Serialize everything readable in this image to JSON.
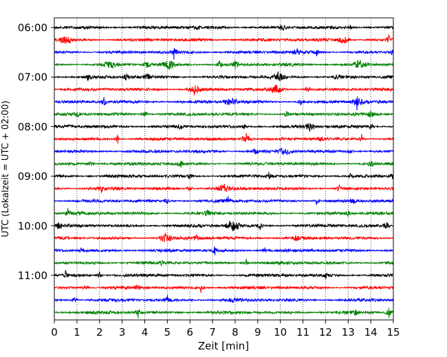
{
  "chart_data": {
    "type": "line",
    "title": "",
    "xlabel": "Zeit  [min]",
    "ylabel": "UTC (Lokalzeit = UTC + 02:00)",
    "xlim": [
      0,
      15
    ],
    "x_ticks": [
      "0",
      "1",
      "2",
      "3",
      "4",
      "5",
      "6",
      "7",
      "8",
      "9",
      "10",
      "11",
      "12",
      "13",
      "14",
      "15"
    ],
    "y_ticks": [
      {
        "label": "06:00",
        "trace_index": 0
      },
      {
        "label": "07:00",
        "trace_index": 4
      },
      {
        "label": "08:00",
        "trace_index": 8
      },
      {
        "label": "09:00",
        "trace_index": 12
      },
      {
        "label": "10:00",
        "trace_index": 16
      },
      {
        "label": "11:00",
        "trace_index": 20
      }
    ],
    "grid": "vertical-dotted",
    "colors": [
      "#000000",
      "#ff0000",
      "#0000ff",
      "#008000"
    ],
    "series": [
      {
        "start": "06:00",
        "color": "#000000",
        "events": [
          [
            6.3,
            0.4
          ],
          [
            10.1,
            0.7
          ],
          [
            13.1,
            0.4
          ]
        ]
      },
      {
        "start": "06:15",
        "color": "#ff0000",
        "events": [
          [
            0.5,
            0.9
          ],
          [
            12.8,
            0.9
          ],
          [
            14.8,
            0.6
          ]
        ]
      },
      {
        "start": "06:30",
        "color": "#0000ff",
        "events": [
          [
            5.3,
            0.7
          ],
          [
            10.7,
            0.7
          ],
          [
            11.6,
            0.5
          ],
          [
            15.0,
            0.6
          ]
        ]
      },
      {
        "start": "06:45",
        "color": "#008000",
        "events": [
          [
            2.5,
            0.9
          ],
          [
            4.1,
            0.6
          ],
          [
            5.1,
            0.9
          ],
          [
            7.3,
            0.6
          ],
          [
            8.0,
            0.6
          ],
          [
            13.5,
            1.0
          ]
        ]
      },
      {
        "start": "07:00",
        "color": "#000000",
        "events": [
          [
            1.5,
            0.5
          ],
          [
            3.2,
            0.6
          ],
          [
            4.1,
            0.6
          ],
          [
            9.9,
            0.9
          ],
          [
            12.5,
            0.6
          ]
        ]
      },
      {
        "start": "07:15",
        "color": "#ff0000",
        "events": [
          [
            6.2,
            0.9
          ],
          [
            9.8,
            0.9
          ],
          [
            11.2,
            0.6
          ]
        ]
      },
      {
        "start": "07:30",
        "color": "#0000ff",
        "events": [
          [
            2.2,
            0.7
          ],
          [
            7.8,
            0.9
          ],
          [
            10.9,
            0.6
          ],
          [
            13.4,
            0.8
          ]
        ]
      },
      {
        "start": "07:45",
        "color": "#008000",
        "events": [
          [
            1.0,
            0.5
          ],
          [
            4.0,
            0.7
          ],
          [
            10.3,
            0.7
          ],
          [
            14.0,
            0.6
          ]
        ]
      },
      {
        "start": "08:00",
        "color": "#000000",
        "events": [
          [
            0.7,
            0.4
          ],
          [
            5.6,
            0.5
          ],
          [
            8.4,
            0.5
          ],
          [
            11.3,
            0.8
          ],
          [
            14.0,
            0.6
          ]
        ]
      },
      {
        "start": "08:15",
        "color": "#ff0000",
        "events": [
          [
            2.8,
            0.5
          ],
          [
            8.5,
            0.8
          ],
          [
            11.8,
            0.5
          ],
          [
            13.6,
            0.5
          ]
        ]
      },
      {
        "start": "08:30",
        "color": "#0000ff",
        "events": [
          [
            8.9,
            0.6
          ],
          [
            10.2,
            0.8
          ],
          [
            13.1,
            0.5
          ]
        ]
      },
      {
        "start": "08:45",
        "color": "#008000",
        "events": [
          [
            1.6,
            0.5
          ],
          [
            5.6,
            0.6
          ],
          [
            14.0,
            0.6
          ]
        ]
      },
      {
        "start": "09:00",
        "color": "#000000",
        "events": [
          [
            6.0,
            0.5
          ],
          [
            9.5,
            0.5
          ],
          [
            13.1,
            0.5
          ],
          [
            15.0,
            0.6
          ]
        ]
      },
      {
        "start": "09:15",
        "color": "#ff0000",
        "events": [
          [
            2.1,
            0.5
          ],
          [
            6.0,
            0.5
          ],
          [
            7.5,
            0.8
          ],
          [
            12.6,
            0.5
          ]
        ]
      },
      {
        "start": "09:30",
        "color": "#0000ff",
        "events": [
          [
            5.0,
            0.5
          ],
          [
            7.7,
            0.5
          ],
          [
            11.6,
            0.5
          ],
          [
            13.2,
            0.5
          ]
        ]
      },
      {
        "start": "09:45",
        "color": "#008000",
        "events": [
          [
            0.6,
            0.6
          ],
          [
            6.8,
            0.5
          ],
          [
            13.0,
            0.4
          ]
        ]
      },
      {
        "start": "10:00",
        "color": "#000000",
        "events": [
          [
            0.2,
            0.6
          ],
          [
            7.9,
            1.5
          ],
          [
            9.1,
            0.5
          ],
          [
            14.7,
            0.6
          ]
        ]
      },
      {
        "start": "10:15",
        "color": "#ff0000",
        "events": [
          [
            4.9,
            0.8
          ],
          [
            6.3,
            0.6
          ],
          [
            10.7,
            0.5
          ]
        ]
      },
      {
        "start": "10:30",
        "color": "#0000ff",
        "events": [
          [
            1.2,
            0.6
          ],
          [
            7.1,
            0.6
          ],
          [
            9.3,
            0.4
          ]
        ]
      },
      {
        "start": "10:45",
        "color": "#008000",
        "events": [
          [
            4.8,
            0.5
          ],
          [
            8.5,
            0.4
          ]
        ]
      },
      {
        "start": "11:00",
        "color": "#000000",
        "events": [
          [
            0.5,
            0.6
          ],
          [
            2.0,
            0.4
          ],
          [
            12.0,
            0.4
          ]
        ]
      },
      {
        "start": "11:15",
        "color": "#ff0000",
        "events": [
          [
            1.4,
            0.6
          ],
          [
            3.7,
            0.7
          ],
          [
            6.5,
            0.5
          ]
        ]
      },
      {
        "start": "11:30",
        "color": "#0000ff",
        "events": [
          [
            0.9,
            0.5
          ],
          [
            5.0,
            0.5
          ],
          [
            7.9,
            0.4
          ]
        ]
      },
      {
        "start": "11:45",
        "color": "#008000",
        "events": [
          [
            3.7,
            0.6
          ],
          [
            13.3,
            0.5
          ],
          [
            14.8,
            0.5
          ]
        ]
      }
    ]
  }
}
